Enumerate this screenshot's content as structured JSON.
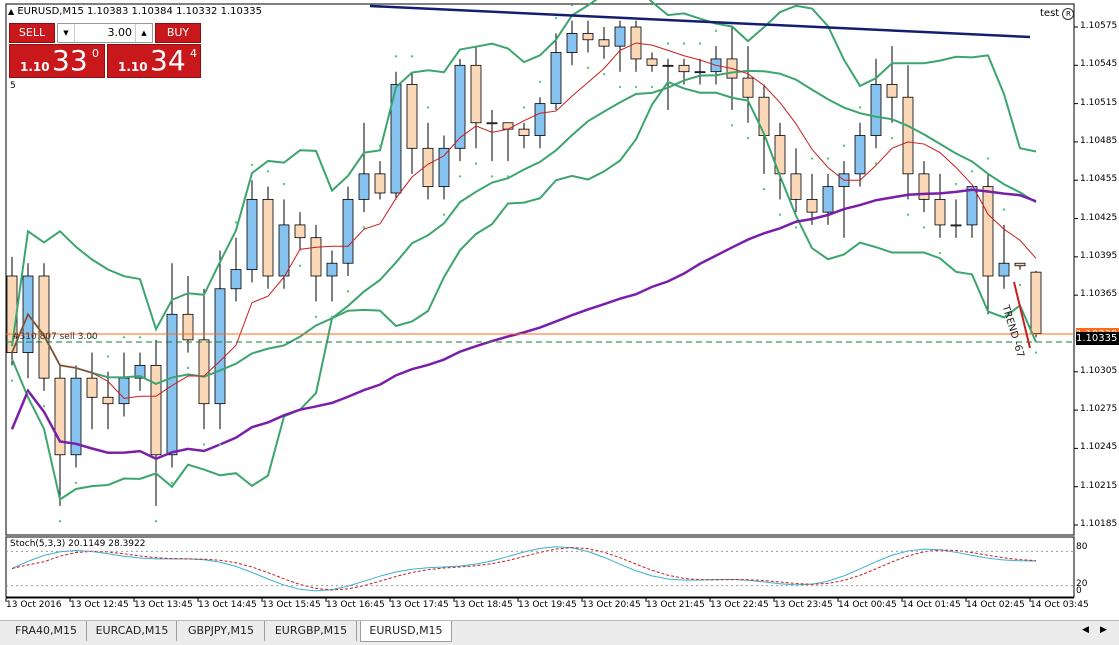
{
  "window": {
    "title": "EURUSD,M15  1.10383 1.10384 1.10332 1.10335",
    "account_label": "test",
    "subwindow_number": "5"
  },
  "trade_panel": {
    "sell_label": "SELL",
    "buy_label": "BUY",
    "lot_value": "3.00",
    "sell_price_prefix": "1.10",
    "sell_price_big": "33",
    "sell_price_sup": "0",
    "buy_price_prefix": "1.10",
    "buy_price_big": "34",
    "buy_price_sup": "4"
  },
  "order_line_label": "#310   807 sell 3.00",
  "trend_label": "TREND -67",
  "price_axis": {
    "ticks": [
      "1.10575",
      "1.10545",
      "1.10515",
      "1.10485",
      "1.10455",
      "1.10425",
      "1.10395",
      "1.10365",
      "1.10305",
      "1.10275",
      "1.10245",
      "1.10215",
      "1.10185"
    ],
    "current_price": "1.10335",
    "order_price": "1.10339",
    "colors": {
      "current_bg": "#000000",
      "order_bg": "#ff6a1a"
    }
  },
  "time_axis": {
    "labels": [
      "13 Oct 2016",
      "13 Oct 12:45",
      "13 Oct 13:45",
      "13 Oct 14:45",
      "13 Oct 15:45",
      "13 Oct 16:45",
      "13 Oct 17:45",
      "13 Oct 18:45",
      "13 Oct 19:45",
      "13 Oct 20:45",
      "13 Oct 21:45",
      "13 Oct 22:45",
      "13 Oct 23:45",
      "14 Oct 00:45",
      "14 Oct 01:45",
      "14 Oct 02:45",
      "14 Oct 03:45"
    ]
  },
  "stoch": {
    "label": "Stoch(5,3,3) 20.1149 28.3922",
    "levels": [
      "80",
      "20",
      "0"
    ]
  },
  "tabs": [
    {
      "label": "FRA40,M15",
      "active": false
    },
    {
      "label": "EURCAD,M15",
      "active": false
    },
    {
      "label": "GBPJPY,M15",
      "active": false
    },
    {
      "label": "EURGBP,M15",
      "active": false
    },
    {
      "label": "EURUSD,M15",
      "active": true
    }
  ],
  "colors": {
    "bull_candle": "#87c3f0",
    "bear_candle": "#fbd9b8",
    "bollinger": "#3ca56e",
    "ma_red": "#c81e1e",
    "ma_purple": "#7a1fa8",
    "ma_navy": "#141e6e",
    "sar": "#5ac878",
    "buy_sell_red": "#c8181c"
  },
  "chart_data": {
    "type": "candlestick",
    "symbol": "EURUSD",
    "timeframe": "M15",
    "ylim": [
      1.10175,
      1.1059
    ],
    "candles": [
      {
        "o": 1.1038,
        "h": 1.10395,
        "l": 1.1031,
        "c": 1.1032
      },
      {
        "o": 1.1032,
        "h": 1.1039,
        "l": 1.103,
        "c": 1.1038
      },
      {
        "o": 1.1038,
        "h": 1.1039,
        "l": 1.1029,
        "c": 1.103
      },
      {
        "o": 1.103,
        "h": 1.1031,
        "l": 1.102,
        "c": 1.1024
      },
      {
        "o": 1.1024,
        "h": 1.1031,
        "l": 1.1023,
        "c": 1.103
      },
      {
        "o": 1.103,
        "h": 1.1032,
        "l": 1.1026,
        "c": 1.10285
      },
      {
        "o": 1.10285,
        "h": 1.10305,
        "l": 1.1026,
        "c": 1.1028
      },
      {
        "o": 1.1028,
        "h": 1.1032,
        "l": 1.1027,
        "c": 1.103
      },
      {
        "o": 1.103,
        "h": 1.1032,
        "l": 1.1029,
        "c": 1.1031
      },
      {
        "o": 1.1031,
        "h": 1.1033,
        "l": 1.102,
        "c": 1.1024
      },
      {
        "o": 1.1024,
        "h": 1.1039,
        "l": 1.1023,
        "c": 1.1035
      },
      {
        "o": 1.1035,
        "h": 1.1038,
        "l": 1.1032,
        "c": 1.1033
      },
      {
        "o": 1.1033,
        "h": 1.1037,
        "l": 1.1026,
        "c": 1.1028
      },
      {
        "o": 1.1028,
        "h": 1.104,
        "l": 1.1026,
        "c": 1.1037
      },
      {
        "o": 1.1037,
        "h": 1.1041,
        "l": 1.1036,
        "c": 1.10385
      },
      {
        "o": 1.10385,
        "h": 1.10455,
        "l": 1.10375,
        "c": 1.1044
      },
      {
        "o": 1.1044,
        "h": 1.1045,
        "l": 1.1037,
        "c": 1.1038
      },
      {
        "o": 1.1038,
        "h": 1.1044,
        "l": 1.1037,
        "c": 1.1042
      },
      {
        "o": 1.1042,
        "h": 1.1043,
        "l": 1.104,
        "c": 1.1041
      },
      {
        "o": 1.1041,
        "h": 1.1042,
        "l": 1.1036,
        "c": 1.1038
      },
      {
        "o": 1.1038,
        "h": 1.104,
        "l": 1.1036,
        "c": 1.1039
      },
      {
        "o": 1.1039,
        "h": 1.1045,
        "l": 1.1038,
        "c": 1.1044
      },
      {
        "o": 1.1044,
        "h": 1.105,
        "l": 1.1043,
        "c": 1.1046
      },
      {
        "o": 1.1046,
        "h": 1.1047,
        "l": 1.1044,
        "c": 1.10445
      },
      {
        "o": 1.10445,
        "h": 1.1054,
        "l": 1.1044,
        "c": 1.1053
      },
      {
        "o": 1.1053,
        "h": 1.1054,
        "l": 1.1046,
        "c": 1.1048
      },
      {
        "o": 1.1048,
        "h": 1.105,
        "l": 1.1044,
        "c": 1.1045
      },
      {
        "o": 1.1045,
        "h": 1.1049,
        "l": 1.1044,
        "c": 1.1048
      },
      {
        "o": 1.1048,
        "h": 1.1055,
        "l": 1.1047,
        "c": 1.10545
      },
      {
        "o": 1.10545,
        "h": 1.1056,
        "l": 1.1048,
        "c": 1.105
      },
      {
        "o": 1.105,
        "h": 1.1051,
        "l": 1.1047,
        "c": 1.105
      },
      {
        "o": 1.105,
        "h": 1.105,
        "l": 1.1047,
        "c": 1.10495
      },
      {
        "o": 1.10495,
        "h": 1.105,
        "l": 1.1048,
        "c": 1.1049
      },
      {
        "o": 1.1049,
        "h": 1.1052,
        "l": 1.1048,
        "c": 1.10515
      },
      {
        "o": 1.10515,
        "h": 1.1057,
        "l": 1.1051,
        "c": 1.10555
      },
      {
        "o": 1.10555,
        "h": 1.1058,
        "l": 1.10545,
        "c": 1.1057
      },
      {
        "o": 1.1057,
        "h": 1.1058,
        "l": 1.10555,
        "c": 1.10565
      },
      {
        "o": 1.10565,
        "h": 1.10575,
        "l": 1.1055,
        "c": 1.1056
      },
      {
        "o": 1.1056,
        "h": 1.1058,
        "l": 1.1054,
        "c": 1.10575
      },
      {
        "o": 1.10575,
        "h": 1.1058,
        "l": 1.1054,
        "c": 1.1055
      },
      {
        "o": 1.1055,
        "h": 1.10555,
        "l": 1.1054,
        "c": 1.10545
      },
      {
        "o": 1.10545,
        "h": 1.1055,
        "l": 1.1051,
        "c": 1.10545
      },
      {
        "o": 1.10545,
        "h": 1.1055,
        "l": 1.1053,
        "c": 1.1054
      },
      {
        "o": 1.1054,
        "h": 1.1055,
        "l": 1.1053,
        "c": 1.1054
      },
      {
        "o": 1.1054,
        "h": 1.1056,
        "l": 1.1053,
        "c": 1.1055
      },
      {
        "o": 1.1055,
        "h": 1.10575,
        "l": 1.1051,
        "c": 1.10535
      },
      {
        "o": 1.10535,
        "h": 1.1056,
        "l": 1.105,
        "c": 1.1052
      },
      {
        "o": 1.1052,
        "h": 1.1053,
        "l": 1.1046,
        "c": 1.1049
      },
      {
        "o": 1.1049,
        "h": 1.105,
        "l": 1.1044,
        "c": 1.1046
      },
      {
        "o": 1.1046,
        "h": 1.1048,
        "l": 1.1043,
        "c": 1.1044
      },
      {
        "o": 1.1044,
        "h": 1.1046,
        "l": 1.1042,
        "c": 1.1043
      },
      {
        "o": 1.1043,
        "h": 1.1046,
        "l": 1.1042,
        "c": 1.1045
      },
      {
        "o": 1.1045,
        "h": 1.1047,
        "l": 1.1041,
        "c": 1.1046
      },
      {
        "o": 1.1046,
        "h": 1.105,
        "l": 1.1045,
        "c": 1.1049
      },
      {
        "o": 1.1049,
        "h": 1.1055,
        "l": 1.1048,
        "c": 1.1053
      },
      {
        "o": 1.1053,
        "h": 1.1056,
        "l": 1.105,
        "c": 1.1052
      },
      {
        "o": 1.1052,
        "h": 1.10545,
        "l": 1.1044,
        "c": 1.1046
      },
      {
        "o": 1.1046,
        "h": 1.1047,
        "l": 1.1043,
        "c": 1.1044
      },
      {
        "o": 1.1044,
        "h": 1.1046,
        "l": 1.1041,
        "c": 1.1042
      },
      {
        "o": 1.1042,
        "h": 1.1044,
        "l": 1.1041,
        "c": 1.1042
      },
      {
        "o": 1.1042,
        "h": 1.1045,
        "l": 1.1041,
        "c": 1.1045
      },
      {
        "o": 1.1045,
        "h": 1.1046,
        "l": 1.1035,
        "c": 1.1038
      },
      {
        "o": 1.1038,
        "h": 1.1042,
        "l": 1.1037,
        "c": 1.1039
      },
      {
        "o": 1.1039,
        "h": 1.1039,
        "l": 1.10385,
        "c": 1.10388
      },
      {
        "o": 1.10383,
        "h": 1.10384,
        "l": 1.10332,
        "c": 1.10335
      }
    ]
  }
}
